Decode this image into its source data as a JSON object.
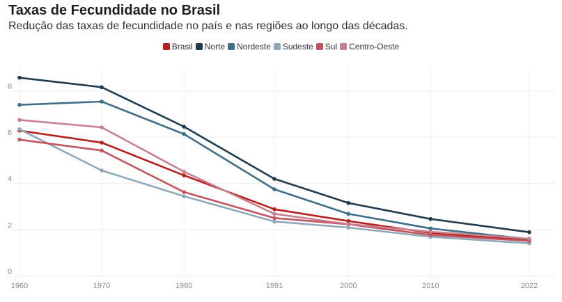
{
  "header": {
    "title": "Taxas de Fecundidade no Brasil",
    "subtitle": "Redução das taxas de fecundidade no país e nas regiões ao longo das décadas."
  },
  "chart_data": {
    "type": "line",
    "title": "Taxas de Fecundidade no Brasil",
    "subtitle": "Redução das taxas de fecundidade no país e nas regiões ao longo das décadas.",
    "xlabel": "",
    "ylabel": "",
    "x": [
      1960,
      1970,
      1980,
      1991,
      2000,
      2010,
      2022
    ],
    "x_ticks": [
      "1960",
      "1970",
      "1980",
      "1991",
      "2000",
      "2010",
      "2022"
    ],
    "y_ticks": [
      "0",
      "2",
      "4",
      "6",
      "8"
    ],
    "ylim": [
      0,
      9
    ],
    "xlim": [
      1960,
      2022
    ],
    "grid": true,
    "legend_position": "top-center",
    "series": [
      {
        "name": "Brasil",
        "color": "#b5201c",
        "values": [
          6.28,
          5.76,
          4.35,
          2.89,
          2.38,
          1.87,
          1.55
        ]
      },
      {
        "name": "Norte",
        "color": "#1f3b4d",
        "values": [
          8.56,
          8.15,
          6.45,
          4.2,
          3.16,
          2.47,
          1.9
        ]
      },
      {
        "name": "Nordeste",
        "color": "#3f6f86",
        "values": [
          7.39,
          7.53,
          6.13,
          3.75,
          2.69,
          2.06,
          1.6
        ]
      },
      {
        "name": "Sudeste",
        "color": "#8fa9bb",
        "values": [
          6.34,
          4.56,
          3.45,
          2.36,
          2.1,
          1.7,
          1.42
        ]
      },
      {
        "name": "Sul",
        "color": "#c05560",
        "values": [
          5.89,
          5.42,
          3.63,
          2.51,
          2.24,
          1.78,
          1.52
        ]
      },
      {
        "name": "Centro-Oeste",
        "color": "#c9808e",
        "values": [
          6.74,
          6.42,
          4.51,
          2.69,
          2.25,
          1.92,
          1.62
        ]
      }
    ]
  }
}
